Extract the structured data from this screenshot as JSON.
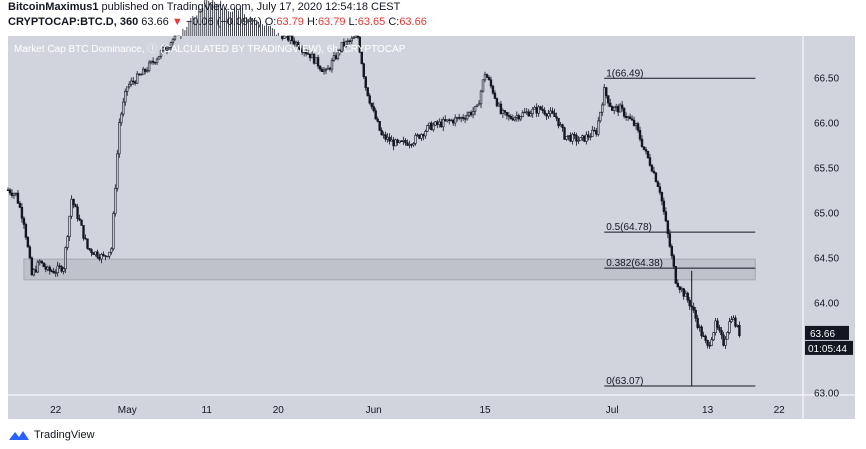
{
  "header": {
    "author": "BitcoinMaximus1",
    "published": "published on TradingView.com, July 17, 2020 12:54:18 CEST",
    "symbol": "CRYPTOCAP:BTC.D, 360",
    "last": "63.66",
    "arrow": "▼",
    "change": "−0.06 (−0.09%)",
    "o_label": "O:",
    "o_value": "63.79",
    "h_label": "H:",
    "h_value": "63.79",
    "l_label": "L:",
    "l_value": "63.65",
    "c_label": "C:",
    "c_value": "63.66"
  },
  "footer": {
    "brand": "TradingView"
  },
  "colors": {
    "plot_bg": "#d1d4dc",
    "candle": "#131722",
    "zone": "#b2b5be",
    "price_tag_bg": "#131722",
    "arrow_red": "#e53935",
    "logo_blue": "#2962ff"
  },
  "chart_data": {
    "type": "candlestick",
    "title": "Market Cap BTC Dominance, ⓘ (CALCULATED BY TRADINGVIEW), 6h, CRYPTOCAP",
    "x_ticks": [
      "22",
      "May",
      "11",
      "20",
      "Jun",
      "15",
      "Jul",
      "13",
      "22"
    ],
    "y_ticks": [
      "66.50",
      "66.00",
      "65.50",
      "65.00",
      "64.50",
      "64.00",
      "63.50",
      "63.00"
    ],
    "ylim": [
      62.97,
      66.96
    ],
    "x_range": [
      "2020-04-16",
      "2020-07-25"
    ],
    "price_path": [
      {
        "date": "2020-04-16",
        "value": 65.25
      },
      {
        "date": "2020-04-17",
        "value": 65.2
      },
      {
        "date": "2020-04-18",
        "value": 64.9
      },
      {
        "date": "2020-04-19",
        "value": 64.3
      },
      {
        "date": "2020-04-20",
        "value": 64.45
      },
      {
        "date": "2020-04-21",
        "value": 64.35
      },
      {
        "date": "2020-04-22",
        "value": 64.35
      },
      {
        "date": "2020-04-23",
        "value": 64.4
      },
      {
        "date": "2020-04-24",
        "value": 65.15
      },
      {
        "date": "2020-04-25",
        "value": 64.9
      },
      {
        "date": "2020-04-26",
        "value": 64.6
      },
      {
        "date": "2020-04-27",
        "value": 64.55
      },
      {
        "date": "2020-04-28",
        "value": 64.5
      },
      {
        "date": "2020-04-29",
        "value": 64.6
      },
      {
        "date": "2020-04-30",
        "value": 66.0
      },
      {
        "date": "2020-05-01",
        "value": 66.4
      },
      {
        "date": "2020-05-03",
        "value": 66.55
      },
      {
        "date": "2020-05-05",
        "value": 66.75
      },
      {
        "date": "2020-05-07",
        "value": 66.95
      },
      {
        "date": "2020-05-09",
        "value": 67.2
      },
      {
        "date": "2020-05-11",
        "value": 67.4
      },
      {
        "date": "2020-05-14",
        "value": 67.3
      },
      {
        "date": "2020-05-17",
        "value": 67.2
      },
      {
        "date": "2020-05-20",
        "value": 67.0
      },
      {
        "date": "2020-05-22",
        "value": 66.9
      },
      {
        "date": "2020-05-24",
        "value": 66.75
      },
      {
        "date": "2020-05-26",
        "value": 66.55
      },
      {
        "date": "2020-05-28",
        "value": 66.85
      },
      {
        "date": "2020-05-30",
        "value": 66.95
      },
      {
        "date": "2020-05-31",
        "value": 66.4
      },
      {
        "date": "2020-06-01",
        "value": 66.1
      },
      {
        "date": "2020-06-02",
        "value": 65.85
      },
      {
        "date": "2020-06-03",
        "value": 65.8
      },
      {
        "date": "2020-06-04",
        "value": 65.75
      },
      {
        "date": "2020-06-06",
        "value": 65.8
      },
      {
        "date": "2020-06-08",
        "value": 65.95
      },
      {
        "date": "2020-06-10",
        "value": 66.0
      },
      {
        "date": "2020-06-12",
        "value": 66.05
      },
      {
        "date": "2020-06-14",
        "value": 66.15
      },
      {
        "date": "2020-06-15",
        "value": 66.55
      },
      {
        "date": "2020-06-16",
        "value": 66.35
      },
      {
        "date": "2020-06-17",
        "value": 66.1
      },
      {
        "date": "2020-06-18",
        "value": 66.05
      },
      {
        "date": "2020-06-20",
        "value": 66.1
      },
      {
        "date": "2020-06-22",
        "value": 66.15
      },
      {
        "date": "2020-06-24",
        "value": 66.05
      },
      {
        "date": "2020-06-25",
        "value": 65.85
      },
      {
        "date": "2020-06-27",
        "value": 65.8
      },
      {
        "date": "2020-06-29",
        "value": 65.9
      },
      {
        "date": "2020-06-30",
        "value": 66.35
      },
      {
        "date": "2020-07-01",
        "value": 66.15
      },
      {
        "date": "2020-07-02",
        "value": 66.15
      },
      {
        "date": "2020-07-04",
        "value": 65.95
      },
      {
        "date": "2020-07-05",
        "value": 65.7
      },
      {
        "date": "2020-07-06",
        "value": 65.5
      },
      {
        "date": "2020-07-07",
        "value": 65.25
      },
      {
        "date": "2020-07-08",
        "value": 64.75
      },
      {
        "date": "2020-07-09",
        "value": 64.25
      },
      {
        "date": "2020-07-10",
        "value": 64.1
      },
      {
        "date": "2020-07-11",
        "value": 63.95
      },
      {
        "date": "2020-07-12",
        "value": 63.7
      },
      {
        "date": "2020-07-13",
        "value": 63.5
      },
      {
        "date": "2020-07-14",
        "value": 63.75
      },
      {
        "date": "2020-07-15",
        "value": 63.55
      },
      {
        "date": "2020-07-16",
        "value": 63.85
      },
      {
        "date": "2020-07-17",
        "value": 63.66
      }
    ],
    "fib_levels": [
      {
        "label": "1(66.49)",
        "value": 66.49
      },
      {
        "label": "0.5(64.78)",
        "value": 64.78
      },
      {
        "label": "0.382(64.38)",
        "value": 64.38
      },
      {
        "label": "0(63.07)",
        "value": 63.07
      }
    ],
    "fib_date_start": "2020-06-30",
    "fib_date_end": "2020-07-19",
    "spike_date": "2020-07-11",
    "spike_low": 63.07,
    "zone": {
      "low": 64.25,
      "high": 64.48,
      "date_start": "2020-04-18",
      "date_end": "2020-07-19"
    },
    "last_price": "63.66",
    "countdown": "01:05:44"
  }
}
